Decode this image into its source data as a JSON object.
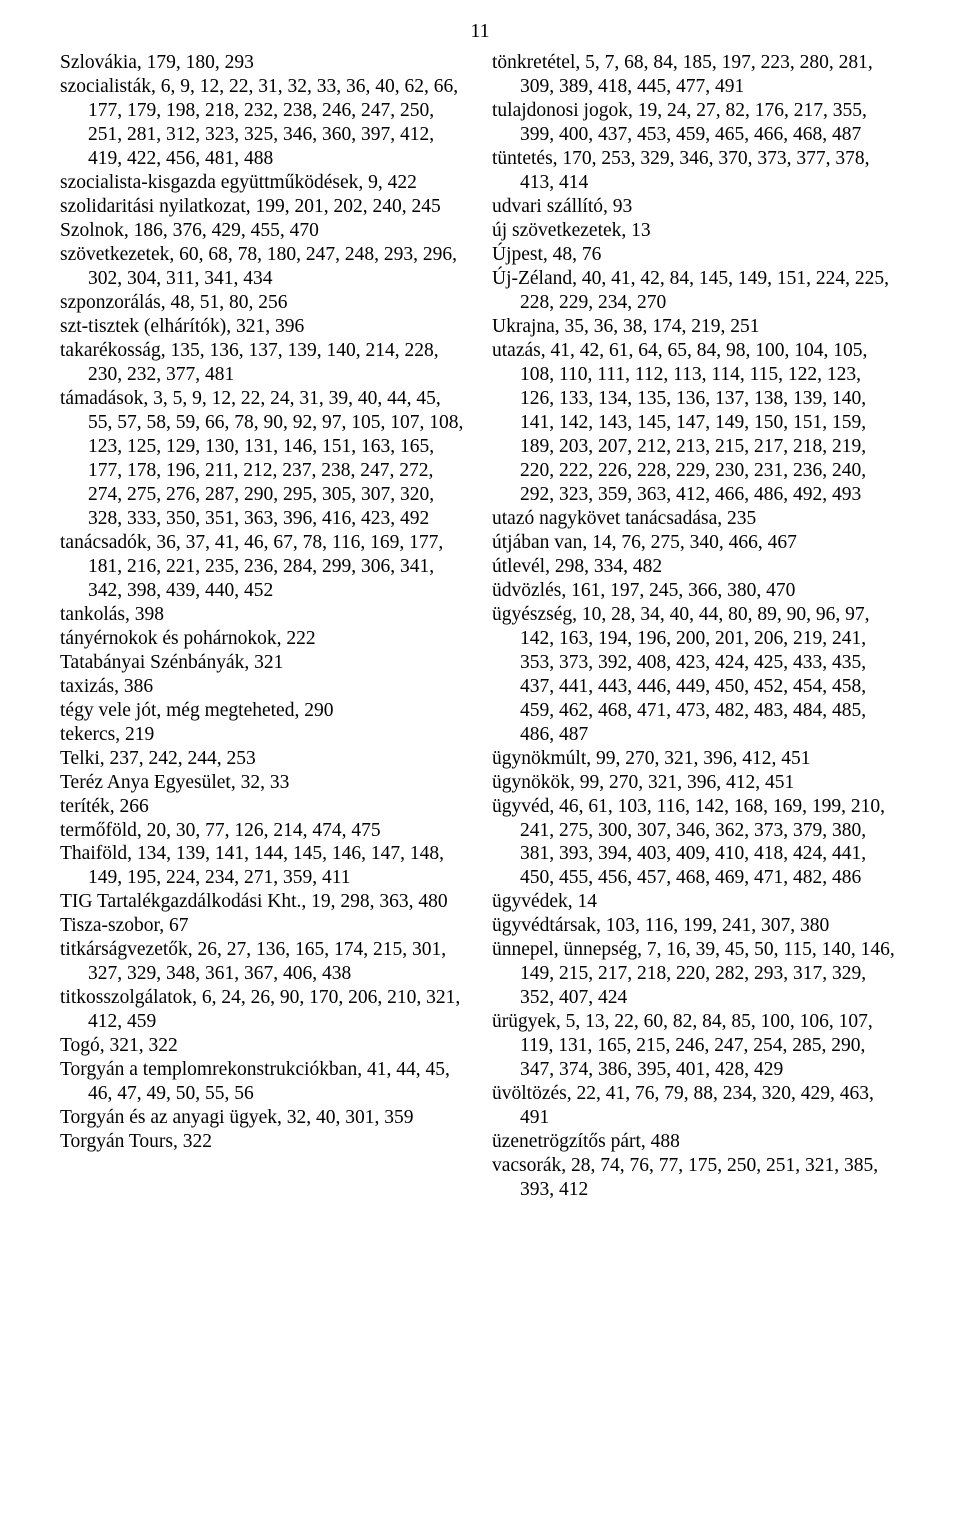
{
  "pageNumber": "11",
  "leftColumn": [
    "Szlovákia, 179, 180, 293",
    "szocialisták, 6, 9, 12, 22, 31, 32, 33, 36, 40, 62, 66, 177, 179, 198, 218, 232, 238, 246, 247, 250, 251, 281, 312, 323, 325, 346, 360, 397, 412, 419, 422, 456, 481, 488",
    "szocialista-kisgazda együttműködések, 9, 422",
    "szolidaritási nyilatkozat, 199, 201, 202, 240, 245",
    "Szolnok, 186, 376, 429, 455, 470",
    "szövetkezetek, 60, 68, 78, 180, 247, 248, 293, 296, 302, 304, 311, 341, 434",
    "szponzorálás, 48, 51, 80, 256",
    "szt-tisztek (elhárítók), 321, 396",
    "takarékosság, 135, 136, 137, 139, 140, 214, 228, 230, 232, 377, 481",
    "támadások, 3, 5, 9, 12, 22, 24, 31, 39, 40, 44, 45, 55, 57, 58, 59, 66, 78, 90, 92, 97, 105, 107, 108, 123, 125, 129, 130, 131, 146, 151, 163, 165, 177, 178, 196, 211, 212, 237, 238, 247, 272, 274, 275, 276, 287, 290, 295, 305, 307, 320, 328, 333, 350, 351, 363, 396, 416, 423, 492",
    "tanácsadók, 36, 37, 41, 46, 67, 78, 116, 169, 177, 181, 216, 221, 235, 236, 284, 299, 306, 341, 342, 398, 439, 440, 452",
    "tankolás, 398",
    "tányérnokok és pohárnokok, 222",
    "Tatabányai Szénbányák, 321",
    "taxizás, 386",
    "tégy vele jót, még megteheted, 290",
    "tekercs, 219",
    "Telki, 237, 242, 244, 253",
    "Teréz Anya Egyesület, 32, 33",
    "teríték, 266",
    "termőföld, 20, 30, 77, 126, 214, 474, 475",
    "Thaiföld, 134, 139, 141, 144, 145, 146, 147, 148, 149, 195, 224, 234, 271, 359, 411",
    "TIG Tartalékgazdálkodási Kht., 19, 298, 363, 480",
    "Tisza-szobor, 67",
    "titkárságvezetők, 26, 27, 136, 165, 174, 215, 301, 327, 329, 348, 361, 367, 406, 438",
    "titkosszolgálatok, 6, 24, 26, 90, 170, 206, 210, 321, 412, 459",
    "Togó, 321, 322",
    "Torgyán a templomrekonstrukciókban, 41, 44, 45, 46, 47, 49, 50, 55, 56",
    "Torgyán és az anyagi ügyek, 32, 40, 301, 359",
    "Torgyán Tours, 322"
  ],
  "rightColumn": [
    "tönkretétel, 5, 7, 68, 84, 185, 197, 223, 280, 281, 309, 389, 418, 445, 477, 491",
    "tulajdonosi jogok, 19, 24, 27, 82, 176, 217, 355, 399, 400, 437, 453, 459, 465, 466, 468, 487",
    "tüntetés, 170, 253, 329, 346, 370, 373, 377, 378, 413, 414",
    "udvari szállító, 93",
    "új szövetkezetek, 13",
    "Újpest, 48, 76",
    "Új-Zéland, 40, 41, 42, 84, 145, 149, 151, 224, 225, 228, 229, 234, 270",
    "Ukrajna, 35, 36, 38, 174, 219, 251",
    "utazás, 41, 42, 61, 64, 65, 84, 98, 100, 104, 105, 108, 110, 111, 112, 113, 114, 115, 122, 123, 126, 133, 134, 135, 136, 137, 138, 139, 140, 141, 142, 143, 145, 147, 149, 150, 151, 159, 189, 203, 207, 212, 213, 215, 217, 218, 219, 220, 222, 226, 228, 229, 230, 231, 236, 240, 292, 323, 359, 363, 412, 466, 486, 492, 493",
    "utazó nagykövet tanácsadása, 235",
    "útjában van, 14, 76, 275, 340, 466, 467",
    "útlevél, 298, 334, 482",
    "üdvözlés, 161, 197, 245, 366, 380, 470",
    "ügyészség, 10, 28, 34, 40, 44, 80, 89, 90, 96, 97, 142, 163, 194, 196, 200, 201, 206, 219, 241, 353, 373, 392, 408, 423, 424, 425, 433, 435, 437, 441, 443, 446, 449, 450, 452, 454, 458, 459, 462, 468, 471, 473, 482, 483, 484, 485, 486, 487",
    "ügynökmúlt, 99, 270, 321, 396, 412, 451",
    "ügynökök, 99, 270, 321, 396, 412, 451",
    "ügyvéd, 46, 61, 103, 116, 142, 168, 169, 199, 210, 241, 275, 300, 307, 346, 362, 373, 379, 380, 381, 393, 394, 403, 409, 410, 418, 424, 441, 450, 455, 456, 457, 468, 469, 471, 482, 486",
    "ügyvédek, 14",
    "ügyvédtársak, 103, 116, 199, 241, 307, 380",
    "ünnepel, ünnepség, 7, 16, 39, 45, 50, 115, 140, 146, 149, 215, 217, 218, 220, 282, 293, 317, 329, 352, 407, 424",
    "ürügyek, 5, 13, 22, 60, 82, 84, 85, 100, 106, 107, 119, 131, 165, 215, 246, 247, 254, 285, 290, 347, 374, 386, 395, 401, 428, 429",
    "üvöltözés, 22, 41, 76, 79, 88, 234, 320, 429, 463, 491",
    "üzenetrögzítős párt, 488",
    "vacsorák, 28, 74, 76, 77, 175, 250, 251, 321, 385, 393, 412"
  ]
}
